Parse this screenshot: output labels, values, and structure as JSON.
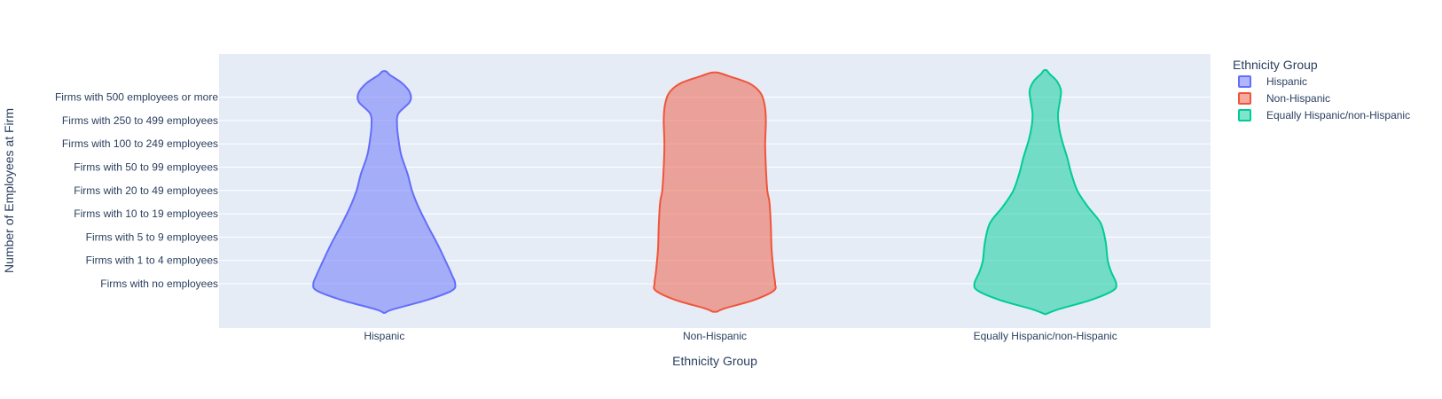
{
  "chart_data": {
    "type": "violin",
    "title": "",
    "xlabel": "Ethnicity Group",
    "ylabel": "Number of Employees at Firm",
    "categories": [
      "Hispanic",
      "Non-Hispanic",
      "Equally Hispanic/non-Hispanic"
    ],
    "y_categories": [
      "Firms with no employees",
      "Firms with 1 to 4 employees",
      "Firms with 5 to 9 employees",
      "Firms with 10 to 19 employees",
      "Firms with 20 to 49 employees",
      "Firms with 50 to 99 employees",
      "Firms with 100 to 249 employees",
      "Firms with 250 to 499 employees",
      "Firms with 500 employees or more"
    ],
    "legend": {
      "title": "Ethnicity Group",
      "placement": "top-right",
      "entries": [
        "Hispanic",
        "Non-Hispanic",
        "Equally Hispanic/non-Hispanic"
      ]
    },
    "series": [
      {
        "name": "Hispanic",
        "color": "#636efa",
        "y_range": [
          -1.25,
          9.1
        ],
        "density_profile": [
          [
            -1.25,
            0.01
          ],
          [
            -1.1,
            0.12
          ],
          [
            -0.7,
            0.6
          ],
          [
            -0.3,
            0.95
          ],
          [
            0.0,
            1.0
          ],
          [
            0.4,
            0.95
          ],
          [
            1.0,
            0.86
          ],
          [
            1.7,
            0.75
          ],
          [
            2.5,
            0.61
          ],
          [
            3.3,
            0.48
          ],
          [
            4.0,
            0.39
          ],
          [
            4.7,
            0.33
          ],
          [
            5.5,
            0.24
          ],
          [
            6.2,
            0.2
          ],
          [
            6.8,
            0.18
          ],
          [
            7.3,
            0.2
          ],
          [
            7.8,
            0.36
          ],
          [
            8.2,
            0.36
          ],
          [
            8.6,
            0.25
          ],
          [
            8.95,
            0.08
          ],
          [
            9.1,
            0.03
          ]
        ]
      },
      {
        "name": "Non-Hispanic",
        "color": "#ef553b",
        "y_range": [
          -1.2,
          9.05
        ],
        "density_profile": [
          [
            -1.2,
            0.03
          ],
          [
            -1.05,
            0.15
          ],
          [
            -0.7,
            0.55
          ],
          [
            -0.3,
            0.83
          ],
          [
            0.0,
            0.85
          ],
          [
            0.5,
            0.83
          ],
          [
            1.5,
            0.8
          ],
          [
            2.5,
            0.79
          ],
          [
            3.5,
            0.77
          ],
          [
            4.0,
            0.74
          ],
          [
            5.0,
            0.72
          ],
          [
            6.0,
            0.71
          ],
          [
            7.0,
            0.72
          ],
          [
            7.7,
            0.7
          ],
          [
            8.2,
            0.64
          ],
          [
            8.6,
            0.48
          ],
          [
            8.9,
            0.2
          ],
          [
            9.05,
            0.05
          ]
        ]
      },
      {
        "name": "Equally Hispanic/non-Hispanic",
        "color": "#00cc96",
        "y_range": [
          -1.3,
          9.15
        ],
        "density_profile": [
          [
            -1.3,
            0.01
          ],
          [
            -1.1,
            0.18
          ],
          [
            -0.7,
            0.64
          ],
          [
            -0.3,
            0.95
          ],
          [
            0.0,
            1.0
          ],
          [
            0.5,
            0.93
          ],
          [
            1.0,
            0.88
          ],
          [
            1.8,
            0.85
          ],
          [
            2.6,
            0.78
          ],
          [
            3.3,
            0.6
          ],
          [
            4.0,
            0.45
          ],
          [
            4.8,
            0.36
          ],
          [
            5.4,
            0.31
          ],
          [
            6.2,
            0.23
          ],
          [
            6.8,
            0.19
          ],
          [
            7.3,
            0.18
          ],
          [
            7.9,
            0.21
          ],
          [
            8.3,
            0.22
          ],
          [
            8.7,
            0.16
          ],
          [
            9.0,
            0.06
          ],
          [
            9.15,
            0.02
          ]
        ]
      }
    ]
  }
}
